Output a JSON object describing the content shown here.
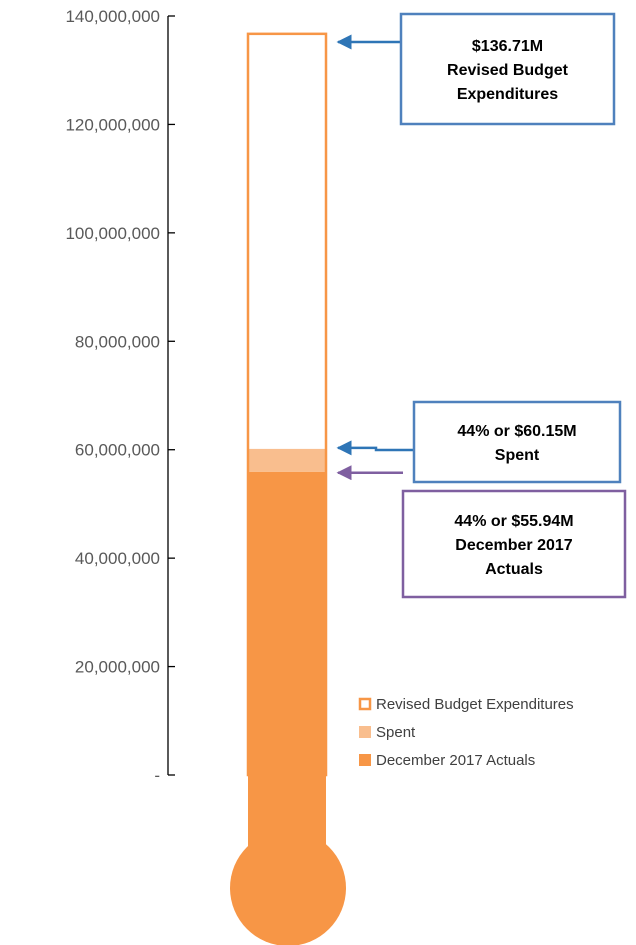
{
  "chart_data": {
    "type": "bar",
    "style": "thermometer",
    "ylim": [
      0,
      140000000
    ],
    "yticks": [
      {
        "value": 0,
        "label": "-"
      },
      {
        "value": 20000000,
        "label": "20,000,000"
      },
      {
        "value": 40000000,
        "label": "40,000,000"
      },
      {
        "value": 60000000,
        "label": "60,000,000"
      },
      {
        "value": 80000000,
        "label": "80,000,000"
      },
      {
        "value": 100000000,
        "label": "100,000,000"
      },
      {
        "value": 120000000,
        "label": "120,000,000"
      },
      {
        "value": 140000000,
        "label": "140,000,000"
      }
    ],
    "series": [
      {
        "name": "Revised Budget Expenditures",
        "value": 136710000,
        "color": "#F79646",
        "fill": "none"
      },
      {
        "name": "Spent",
        "value": 60150000,
        "color": "#F9BE8E",
        "fill": "solid"
      },
      {
        "name": "December 2017 Actuals",
        "value": 55940000,
        "color": "#F79646",
        "fill": "solid"
      }
    ],
    "callouts": [
      {
        "lines": [
          "$136.71M",
          "Revised Budget",
          "Expenditures"
        ],
        "border": "#4F81BD",
        "arrow": "#2E75B6",
        "target": 136710000
      },
      {
        "lines": [
          "44% or $60.15M",
          "Spent"
        ],
        "border": "#4F81BD",
        "arrow": "#2E75B6",
        "target": 60150000
      },
      {
        "lines": [
          "44% or $55.94M",
          "December 2017",
          "Actuals"
        ],
        "border": "#7F5FA0",
        "arrow": "#7F5FA0",
        "target": 55940000
      }
    ],
    "legend": {
      "position": "bottom-right"
    },
    "grid": false
  }
}
